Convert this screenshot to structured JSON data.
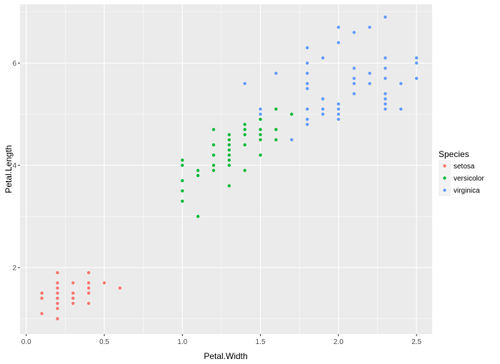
{
  "chart_data": {
    "type": "scatter",
    "xlabel": "Petal.Width",
    "ylabel": "Petal.Length",
    "xlim": [
      -0.04,
      2.6
    ],
    "ylim": [
      0.7,
      7.15
    ],
    "x_ticks": [
      0.0,
      0.5,
      1.0,
      1.5,
      2.0,
      2.5
    ],
    "x_tick_labels": [
      "0.0",
      "0.5",
      "1.0",
      "1.5",
      "2.0",
      "2.5"
    ],
    "y_ticks": [
      2,
      4,
      6
    ],
    "y_tick_labels": [
      "2",
      "4",
      "6"
    ],
    "grid": true,
    "panel_background": "#ebebeb",
    "grid_color": "#ffffff",
    "legend": {
      "title": "Species",
      "placement": "right"
    },
    "series": [
      {
        "name": "setosa",
        "color": "#f8766d",
        "points": [
          [
            0.1,
            1.1
          ],
          [
            0.1,
            1.4
          ],
          [
            0.1,
            1.5
          ],
          [
            0.2,
            1.0
          ],
          [
            0.2,
            1.2
          ],
          [
            0.2,
            1.3
          ],
          [
            0.2,
            1.4
          ],
          [
            0.2,
            1.5
          ],
          [
            0.2,
            1.6
          ],
          [
            0.2,
            1.7
          ],
          [
            0.2,
            1.9
          ],
          [
            0.3,
            1.3
          ],
          [
            0.3,
            1.4
          ],
          [
            0.3,
            1.5
          ],
          [
            0.3,
            1.7
          ],
          [
            0.4,
            1.3
          ],
          [
            0.4,
            1.5
          ],
          [
            0.4,
            1.6
          ],
          [
            0.4,
            1.7
          ],
          [
            0.4,
            1.9
          ],
          [
            0.5,
            1.7
          ],
          [
            0.6,
            1.6
          ]
        ]
      },
      {
        "name": "versicolor",
        "color": "#00ba38",
        "points": [
          [
            1.0,
            3.3
          ],
          [
            1.0,
            3.5
          ],
          [
            1.0,
            3.7
          ],
          [
            1.0,
            4.0
          ],
          [
            1.0,
            4.1
          ],
          [
            1.1,
            3.0
          ],
          [
            1.1,
            3.8
          ],
          [
            1.1,
            3.9
          ],
          [
            1.2,
            3.9
          ],
          [
            1.2,
            4.0
          ],
          [
            1.2,
            4.2
          ],
          [
            1.2,
            4.4
          ],
          [
            1.2,
            4.7
          ],
          [
            1.3,
            3.6
          ],
          [
            1.3,
            4.0
          ],
          [
            1.3,
            4.1
          ],
          [
            1.3,
            4.2
          ],
          [
            1.3,
            4.3
          ],
          [
            1.3,
            4.4
          ],
          [
            1.3,
            4.5
          ],
          [
            1.3,
            4.6
          ],
          [
            1.4,
            3.9
          ],
          [
            1.4,
            4.4
          ],
          [
            1.4,
            4.6
          ],
          [
            1.4,
            4.7
          ],
          [
            1.4,
            4.8
          ],
          [
            1.5,
            4.2
          ],
          [
            1.5,
            4.5
          ],
          [
            1.5,
            4.6
          ],
          [
            1.5,
            4.7
          ],
          [
            1.5,
            4.9
          ],
          [
            1.6,
            4.5
          ],
          [
            1.6,
            4.7
          ],
          [
            1.6,
            5.1
          ],
          [
            1.7,
            5.0
          ]
        ]
      },
      {
        "name": "virginica",
        "color": "#619cff",
        "points": [
          [
            1.4,
            5.6
          ],
          [
            1.5,
            5.0
          ],
          [
            1.5,
            5.1
          ],
          [
            1.6,
            5.8
          ],
          [
            1.7,
            4.5
          ],
          [
            1.8,
            4.8
          ],
          [
            1.8,
            4.9
          ],
          [
            1.8,
            5.1
          ],
          [
            1.8,
            5.5
          ],
          [
            1.8,
            5.6
          ],
          [
            1.8,
            5.8
          ],
          [
            1.8,
            6.0
          ],
          [
            1.8,
            6.3
          ],
          [
            1.9,
            5.0
          ],
          [
            1.9,
            5.1
          ],
          [
            1.9,
            5.3
          ],
          [
            1.9,
            6.1
          ],
          [
            2.0,
            4.9
          ],
          [
            2.0,
            5.0
          ],
          [
            2.0,
            5.1
          ],
          [
            2.0,
            5.2
          ],
          [
            2.0,
            6.4
          ],
          [
            2.0,
            6.7
          ],
          [
            2.1,
            5.4
          ],
          [
            2.1,
            5.6
          ],
          [
            2.1,
            5.7
          ],
          [
            2.1,
            5.9
          ],
          [
            2.1,
            6.6
          ],
          [
            2.2,
            5.6
          ],
          [
            2.2,
            5.8
          ],
          [
            2.2,
            6.7
          ],
          [
            2.3,
            5.1
          ],
          [
            2.3,
            5.2
          ],
          [
            2.3,
            5.3
          ],
          [
            2.3,
            5.4
          ],
          [
            2.3,
            5.7
          ],
          [
            2.3,
            5.9
          ],
          [
            2.3,
            6.1
          ],
          [
            2.3,
            6.9
          ],
          [
            2.4,
            5.1
          ],
          [
            2.4,
            5.6
          ],
          [
            2.5,
            5.7
          ],
          [
            2.5,
            6.0
          ],
          [
            2.5,
            6.1
          ]
        ]
      }
    ]
  }
}
